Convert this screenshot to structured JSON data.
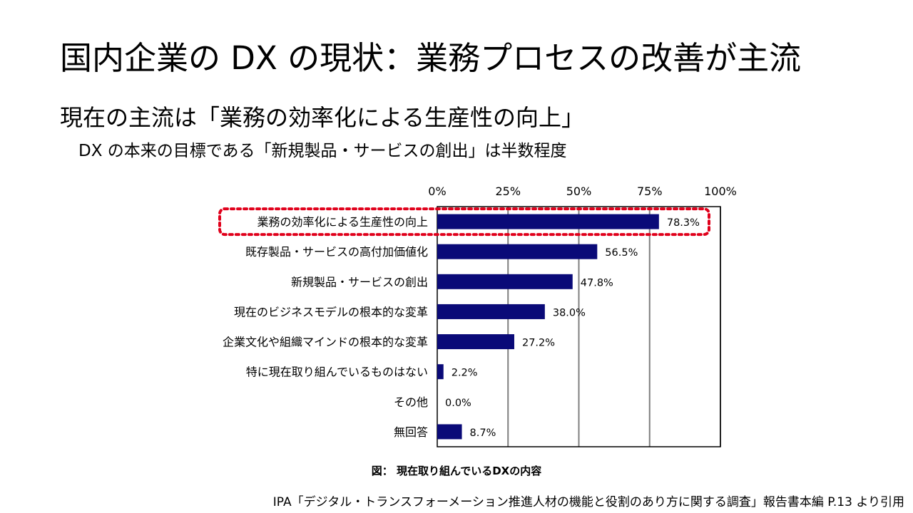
{
  "slide": {
    "title": "国内企業の DX の現状：業務プロセスの改善が主流",
    "subtitle": "現在の主流は「業務の効率化による生産性の向上」",
    "note": "DX の本来の目標である「新規製品・サービスの創出」は半数程度"
  },
  "chart_data": {
    "type": "bar",
    "orientation": "horizontal",
    "categories": [
      "業務の効率化による生産性の向上",
      "既存製品・サービスの高付加価値化",
      "新規製品・サービスの創出",
      "現在のビジネスモデルの根本的な変革",
      "企業文化や組織マインドの根本的な変革",
      "特に現在取り組んでいるものはない",
      "その他",
      "無回答"
    ],
    "values": [
      78.3,
      56.5,
      47.8,
      38.0,
      27.2,
      2.2,
      0.0,
      8.7
    ],
    "value_labels": [
      "78.3%",
      "56.5%",
      "47.8%",
      "38.0%",
      "27.2%",
      "2.2%",
      "0.0%",
      "8.7%"
    ],
    "xlim": [
      0,
      100
    ],
    "x_ticks": [
      0,
      25,
      50,
      75,
      100
    ],
    "x_tick_labels": [
      "0%",
      "25%",
      "50%",
      "75%",
      "100%"
    ],
    "axis_position": "top",
    "grid": true,
    "bar_color": "#0a0a78",
    "highlight_color": "#e0001b",
    "highlight_index": 0,
    "caption": "図： 現在取り組んでいるDXの内容"
  },
  "footer": {
    "source": "IPA「デジタル・トランスフォーメーション推進人材の機能と役割のあり方に関する調査」報告書本編 P.13 より引用"
  }
}
